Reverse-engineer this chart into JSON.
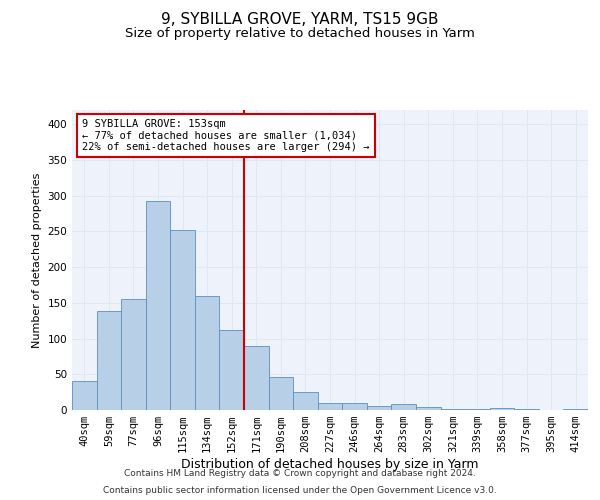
{
  "title1": "9, SYBILLA GROVE, YARM, TS15 9GB",
  "title2": "Size of property relative to detached houses in Yarm",
  "xlabel": "Distribution of detached houses by size in Yarm",
  "ylabel": "Number of detached properties",
  "bar_labels": [
    "40sqm",
    "59sqm",
    "77sqm",
    "96sqm",
    "115sqm",
    "134sqm",
    "152sqm",
    "171sqm",
    "190sqm",
    "208sqm",
    "227sqm",
    "246sqm",
    "264sqm",
    "283sqm",
    "302sqm",
    "321sqm",
    "339sqm",
    "358sqm",
    "377sqm",
    "395sqm",
    "414sqm"
  ],
  "bar_values": [
    40,
    138,
    155,
    293,
    252,
    160,
    112,
    90,
    46,
    25,
    10,
    10,
    6,
    9,
    4,
    2,
    2,
    3,
    2,
    0,
    2
  ],
  "bar_color": "#b8cfe8",
  "bar_edge_color": "#5a8fc0",
  "vline_x_idx": 6,
  "vline_color": "#cc0000",
  "annotation_text": "9 SYBILLA GROVE: 153sqm\n← 77% of detached houses are smaller (1,034)\n22% of semi-detached houses are larger (294) →",
  "annotation_box_color": "#ffffff",
  "annotation_box_edge": "#cc0000",
  "ylim": [
    0,
    420
  ],
  "yticks": [
    0,
    50,
    100,
    150,
    200,
    250,
    300,
    350,
    400
  ],
  "grid_color": "#dde8f5",
  "bg_color": "#eef3fb",
  "footnote1": "Contains HM Land Registry data © Crown copyright and database right 2024.",
  "footnote2": "Contains public sector information licensed under the Open Government Licence v3.0.",
  "title1_fontsize": 11,
  "title2_fontsize": 9.5,
  "xlabel_fontsize": 9,
  "ylabel_fontsize": 8,
  "tick_fontsize": 7.5,
  "annotation_fontsize": 7.5,
  "footnote_fontsize": 6.5
}
